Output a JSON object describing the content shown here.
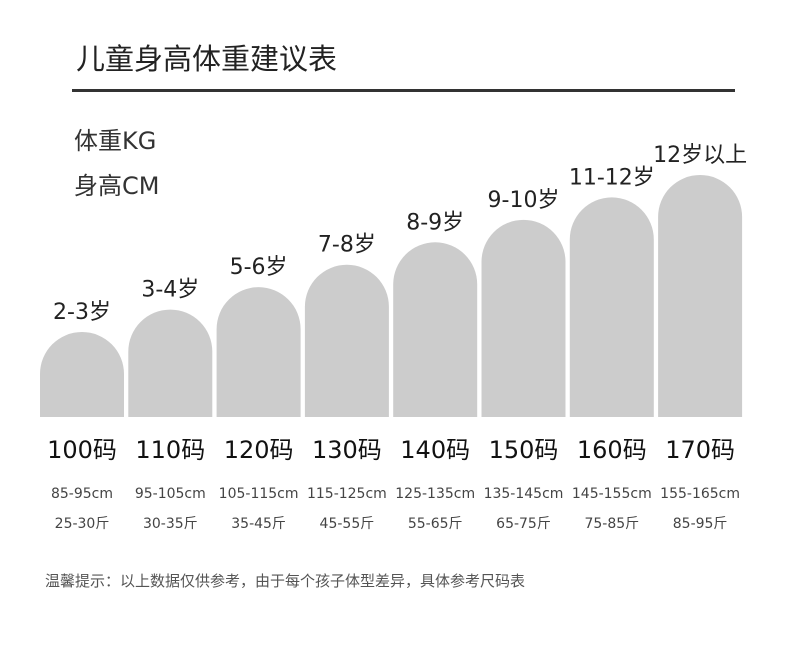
{
  "title": "儿童身高体重建议表",
  "legend": {
    "weight": "体重KG",
    "height": "身高CM"
  },
  "note": "温馨提示：以上数据仅供参考，由于每个孩子体型差异，具体参考尺码表",
  "colors": {
    "bar": "#cccccc",
    "rule": "#333333"
  },
  "chart_data": {
    "type": "bar",
    "title": "儿童身高体重建议表",
    "categories": [
      "2-3岁",
      "3-4岁",
      "5-6岁",
      "7-8岁",
      "8-9岁",
      "9-10岁",
      "11-12岁",
      "12岁以上"
    ],
    "sizes": [
      "100码",
      "110码",
      "120码",
      "130码",
      "140码",
      "150码",
      "160码",
      "170码"
    ],
    "height_ranges": [
      "85-95cm",
      "95-105cm",
      "105-115cm",
      "115-125cm",
      "125-135cm",
      "135-145cm",
      "145-155cm",
      "155-165cm"
    ],
    "weight_ranges": [
      "25-30斤",
      "30-35斤",
      "35-45斤",
      "45-55斤",
      "55-65斤",
      "65-75斤",
      "75-85斤",
      "85-95斤"
    ],
    "values": [
      100,
      110,
      120,
      130,
      140,
      150,
      160,
      170
    ],
    "ylim": [
      0,
      170
    ],
    "grid": false
  }
}
